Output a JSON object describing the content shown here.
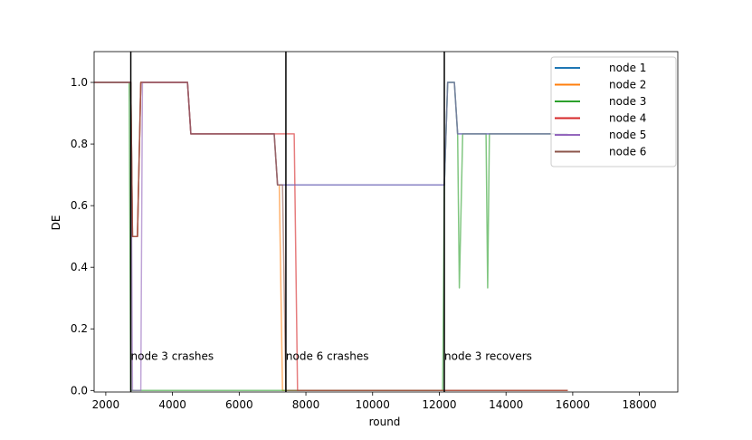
{
  "chart_data": {
    "type": "line",
    "title": "",
    "xlabel": "round",
    "ylabel": "DE",
    "xlim": [
      1650,
      19150
    ],
    "ylim": [
      -0.005,
      1.1
    ],
    "xticks": [
      2000,
      4000,
      6000,
      8000,
      10000,
      12000,
      14000,
      16000,
      18000
    ],
    "yticks": [
      0.0,
      0.2,
      0.4,
      0.6,
      0.8,
      1.0
    ],
    "ytick_labels": [
      "0.0",
      "0.2",
      "0.4",
      "0.6",
      "0.8",
      "1.0"
    ],
    "grid": false,
    "legend_position": "top-right",
    "colors": {
      "node 1": "#1f77b4",
      "node 2": "#ff7f0e",
      "node 3": "#2ca02c",
      "node 4": "#d62728",
      "node 5": "#9467bd",
      "node 6": "#8c564b"
    },
    "series": [
      {
        "name": "node 1",
        "x": [
          1650,
          2750,
          2800,
          2950,
          3050,
          3150,
          4450,
          4550,
          7050,
          7150,
          12150,
          12250,
          12450,
          12550,
          15850
        ],
        "y": [
          1.0,
          1.0,
          0.5,
          0.5,
          1.0,
          1.0,
          1.0,
          0.833,
          0.833,
          0.667,
          0.667,
          1.0,
          1.0,
          0.833,
          0.833
        ]
      },
      {
        "name": "node 2",
        "x": [
          1650,
          2750,
          2800,
          2950,
          3050,
          3150,
          4450,
          4550,
          7050,
          7150,
          7200,
          7300,
          7320,
          15850
        ],
        "y": [
          1.0,
          1.0,
          0.5,
          0.5,
          1.0,
          1.0,
          1.0,
          0.833,
          0.833,
          0.667,
          0.667,
          0.0,
          0.0,
          0.0
        ]
      },
      {
        "name": "node 3",
        "x": [
          1650,
          2700,
          2750,
          12100,
          12150,
          12250,
          12450,
          12550,
          12600,
          12700,
          13400,
          13450,
          13500,
          13550,
          15850
        ],
        "y": [
          1.0,
          1.0,
          0.0,
          0.0,
          0.667,
          1.0,
          1.0,
          0.833,
          0.333,
          0.833,
          0.833,
          0.333,
          0.833,
          0.833,
          0.833
        ]
      },
      {
        "name": "node 4",
        "x": [
          1650,
          2750,
          2800,
          2950,
          3050,
          3150,
          4450,
          4550,
          7050,
          7100,
          7650,
          7750,
          15850
        ],
        "y": [
          1.0,
          1.0,
          0.5,
          0.5,
          1.0,
          1.0,
          1.0,
          0.833,
          0.833,
          0.833,
          0.833,
          0.0,
          0.0
        ]
      },
      {
        "name": "node 5",
        "x": [
          1650,
          2750,
          2800,
          3050,
          3100,
          3150,
          4450,
          4550,
          7050,
          7150,
          12150,
          12250,
          12450,
          12550,
          15850
        ],
        "y": [
          1.0,
          1.0,
          0.0,
          0.0,
          1.0,
          1.0,
          1.0,
          0.833,
          0.833,
          0.667,
          0.667,
          1.0,
          1.0,
          0.833,
          0.833
        ]
      },
      {
        "name": "node 6",
        "x": [
          1650,
          2750,
          2800,
          2950,
          3050,
          3150,
          4450,
          4550,
          7050,
          7150,
          7300,
          7400,
          15850
        ],
        "y": [
          1.0,
          1.0,
          0.5,
          0.5,
          1.0,
          1.0,
          1.0,
          0.833,
          0.833,
          0.667,
          0.667,
          0.0,
          0.0
        ]
      }
    ],
    "vlines": [
      2750,
      7400,
      12150
    ],
    "annotations": [
      {
        "text": "node 3 crashes",
        "x": 2750,
        "y": 0.1
      },
      {
        "text": "node 6 crashes",
        "x": 7400,
        "y": 0.1
      },
      {
        "text": "node 3 recovers",
        "x": 12150,
        "y": 0.1
      }
    ]
  }
}
